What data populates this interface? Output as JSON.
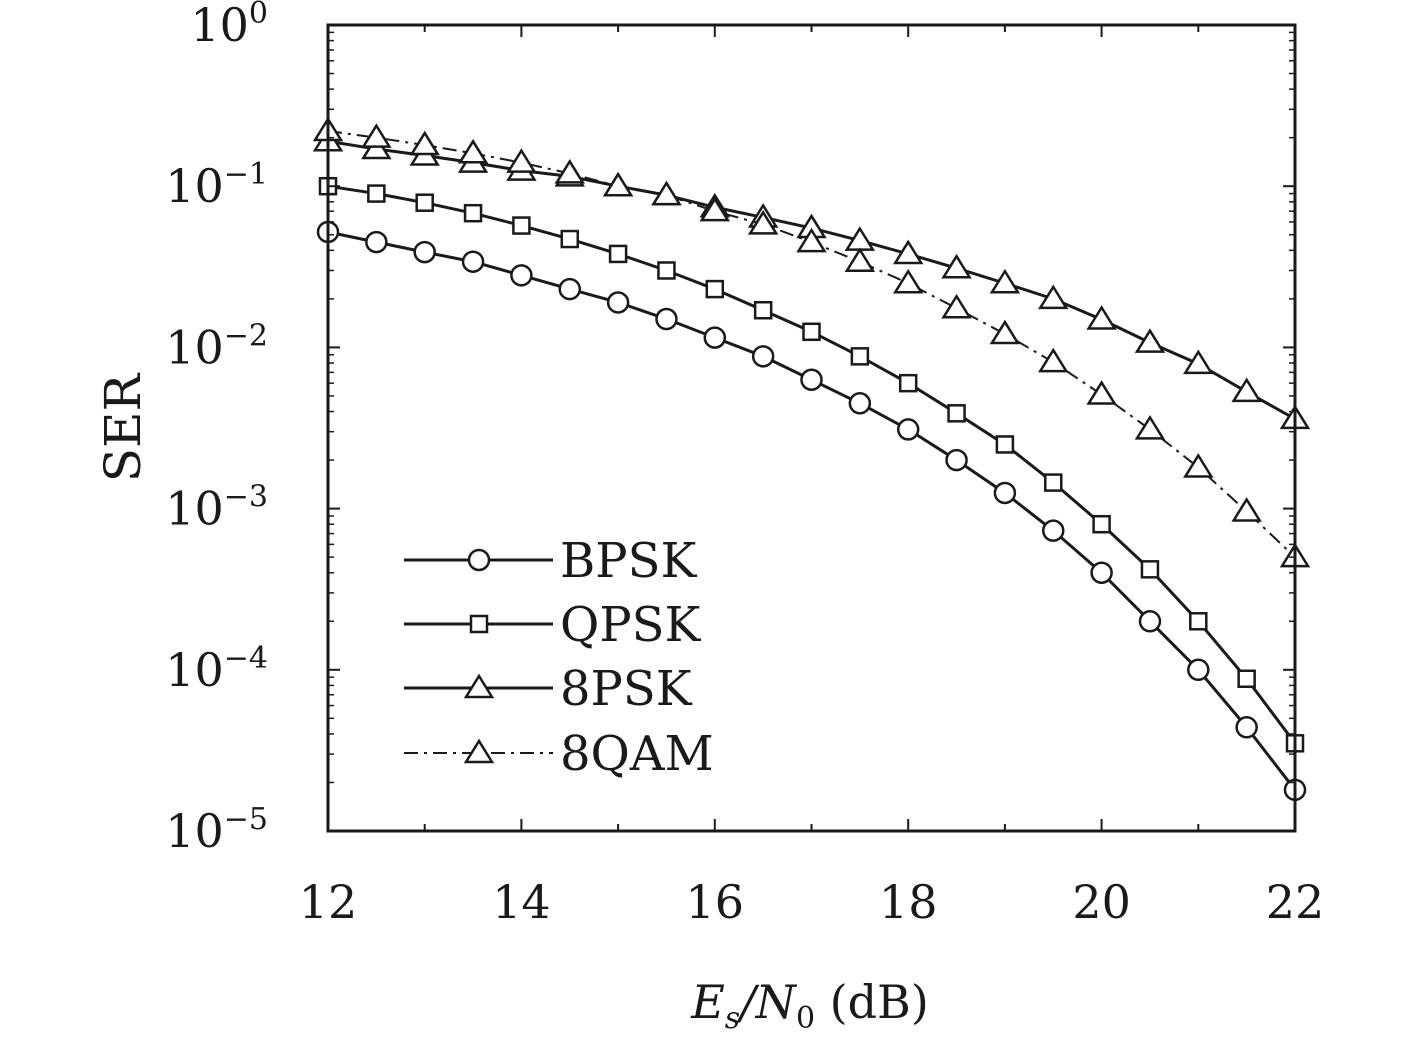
{
  "chart_data": {
    "type": "line",
    "title": "",
    "xlabel": {
      "main": "E",
      "sub1": "s",
      "mid": "/N",
      "sub2": "0",
      "tail": " (dB)"
    },
    "ylabel": "SER",
    "xlim": [
      12,
      22
    ],
    "ylim": [
      1e-05,
      1
    ],
    "yscale": "log",
    "grid": false,
    "legend_position": "lower-left",
    "x_ticks": [
      12,
      14,
      16,
      18,
      20,
      22
    ],
    "y_ticks": [
      {
        "value": 1,
        "base": "10",
        "exp": "0"
      },
      {
        "value": 0.1,
        "base": "10",
        "exp": "−1"
      },
      {
        "value": 0.01,
        "base": "10",
        "exp": "−2"
      },
      {
        "value": 0.001,
        "base": "10",
        "exp": "−3"
      },
      {
        "value": 0.0001,
        "base": "10",
        "exp": "−4"
      },
      {
        "value": 1e-05,
        "base": "10",
        "exp": "−5"
      }
    ],
    "x": [
      12,
      12.5,
      13,
      13.5,
      14,
      14.5,
      15,
      15.5,
      16,
      16.5,
      17,
      17.5,
      18,
      18.5,
      19,
      19.5,
      20,
      20.5,
      21,
      21.5,
      22
    ],
    "series": [
      {
        "name": "BPSK",
        "marker": "circle",
        "line": "solid",
        "values": [
          0.052,
          0.045,
          0.039,
          0.034,
          0.028,
          0.023,
          0.019,
          0.015,
          0.0115,
          0.0088,
          0.0063,
          0.0045,
          0.0031,
          0.002,
          0.00125,
          0.00073,
          0.0004,
          0.0002,
          0.0001,
          4.4e-05,
          1.8e-05
        ]
      },
      {
        "name": "QPSK",
        "marker": "square",
        "line": "solid",
        "values": [
          0.1,
          0.09,
          0.079,
          0.068,
          0.057,
          0.047,
          0.038,
          0.03,
          0.023,
          0.017,
          0.0125,
          0.0088,
          0.006,
          0.0039,
          0.0025,
          0.00145,
          0.0008,
          0.00042,
          0.0002,
          8.8e-05,
          3.5e-05
        ]
      },
      {
        "name": "8PSK",
        "marker": "triangle",
        "line": "solid",
        "values": [
          0.19,
          0.17,
          0.155,
          0.14,
          0.125,
          0.115,
          0.1,
          0.088,
          0.074,
          0.064,
          0.055,
          0.046,
          0.038,
          0.031,
          0.025,
          0.02,
          0.0149,
          0.0107,
          0.0079,
          0.0053,
          0.0036
        ]
      },
      {
        "name": "8QAM",
        "marker": "triangle",
        "line": "dashdot",
        "values": [
          0.22,
          0.2,
          0.18,
          0.16,
          0.14,
          0.12,
          0.1,
          0.088,
          0.07,
          0.058,
          0.045,
          0.034,
          0.025,
          0.0175,
          0.0121,
          0.0081,
          0.0051,
          0.0031,
          0.0018,
          0.00096,
          0.0005
        ]
      }
    ]
  }
}
